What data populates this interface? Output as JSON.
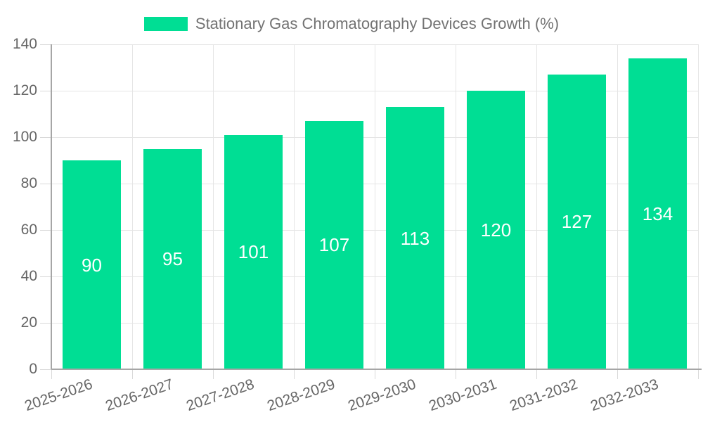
{
  "chart_data": {
    "type": "bar",
    "title": "Stationary Gas Chromatography Devices Growth (%)",
    "legend_position": "top",
    "categories": [
      "2025-2026",
      "2026-2027",
      "2027-2028",
      "2028-2029",
      "2029-2030",
      "2030-2031",
      "2031-2032",
      "2032-2033"
    ],
    "values": [
      90,
      95,
      101,
      107,
      113,
      120,
      127,
      134
    ],
    "value_labels": [
      "90",
      "95",
      "101",
      "107",
      "113",
      "120",
      "127",
      "134"
    ],
    "xlabel": "",
    "ylabel": "",
    "ylim": [
      0,
      140
    ],
    "yticks": [
      0,
      20,
      40,
      60,
      80,
      100,
      120,
      140
    ],
    "grid": true,
    "x_label_rotation_deg": -19,
    "colors": {
      "bar": "#00DE94",
      "value_label": "#FFFFFF",
      "grid_line": "#E5E5E5",
      "axis_line": "#A6A6A6",
      "tick_mark": "#D9D9D9",
      "tick_label": "#666666",
      "legend_text": "#737373",
      "background": "#FFFFFF"
    }
  }
}
